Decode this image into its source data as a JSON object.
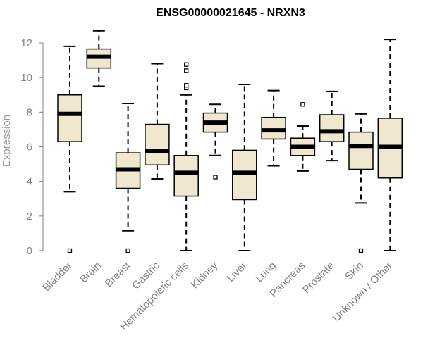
{
  "chart_data": {
    "type": "boxplot",
    "title": "ENSG00000021645 - NRXN3",
    "ylabel": "Expression",
    "xlabel": "",
    "ylim": [
      0,
      12
    ],
    "yticks": [
      0,
      2,
      4,
      6,
      8,
      10,
      12
    ],
    "grid": false,
    "legend": "none",
    "colors": {
      "box_fill": "#efe8cf",
      "box_stroke": "#000000",
      "median": "#000000",
      "axis": "#808080"
    },
    "categories": [
      "Bladder",
      "Brain",
      "Breast",
      "Gastric",
      "Hematopoietic cells",
      "Kidney",
      "Liver",
      "Lung",
      "Pancreas",
      "Prostate",
      "Skin",
      "Unknown / Other"
    ],
    "boxes": [
      {
        "category": "Bladder",
        "whisker_low": 3.4,
        "q1": 6.3,
        "median": 7.9,
        "q3": 9.0,
        "whisker_high": 11.8,
        "outliers": [
          0.0
        ]
      },
      {
        "category": "Brain",
        "whisker_low": 9.5,
        "q1": 10.55,
        "median": 11.2,
        "q3": 11.65,
        "whisker_high": 12.7,
        "outliers": []
      },
      {
        "category": "Breast",
        "whisker_low": 1.15,
        "q1": 3.6,
        "median": 4.7,
        "q3": 5.65,
        "whisker_high": 8.5,
        "outliers": [
          0.0
        ]
      },
      {
        "category": "Gastric",
        "whisker_low": 4.15,
        "q1": 4.95,
        "median": 5.75,
        "q3": 7.3,
        "whisker_high": 10.8,
        "outliers": []
      },
      {
        "category": "Hematopoietic cells",
        "whisker_low": 0.0,
        "q1": 3.15,
        "median": 4.5,
        "q3": 5.5,
        "whisker_high": 9.0,
        "outliers": [
          9.4,
          9.55,
          10.4,
          10.75
        ]
      },
      {
        "category": "Kidney",
        "whisker_low": 5.5,
        "q1": 6.85,
        "median": 7.4,
        "q3": 7.95,
        "whisker_high": 8.45,
        "outliers": [
          4.25
        ]
      },
      {
        "category": "Liver",
        "whisker_low": 0.0,
        "q1": 2.95,
        "median": 4.5,
        "q3": 5.8,
        "whisker_high": 9.6,
        "outliers": []
      },
      {
        "category": "Lung",
        "whisker_low": 4.9,
        "q1": 6.45,
        "median": 6.95,
        "q3": 7.7,
        "whisker_high": 9.25,
        "outliers": []
      },
      {
        "category": "Pancreas",
        "whisker_low": 4.6,
        "q1": 5.5,
        "median": 6.0,
        "q3": 6.5,
        "whisker_high": 7.2,
        "outliers": [
          8.45
        ]
      },
      {
        "category": "Prostate",
        "whisker_low": 5.2,
        "q1": 6.3,
        "median": 6.9,
        "q3": 7.85,
        "whisker_high": 9.2,
        "outliers": []
      },
      {
        "category": "Skin",
        "whisker_low": 2.75,
        "q1": 4.7,
        "median": 6.05,
        "q3": 6.85,
        "whisker_high": 7.9,
        "outliers": [
          0.0
        ]
      },
      {
        "category": "Unknown / Other",
        "whisker_low": 0.0,
        "q1": 4.2,
        "median": 6.0,
        "q3": 7.65,
        "whisker_high": 12.2,
        "outliers": []
      }
    ]
  }
}
